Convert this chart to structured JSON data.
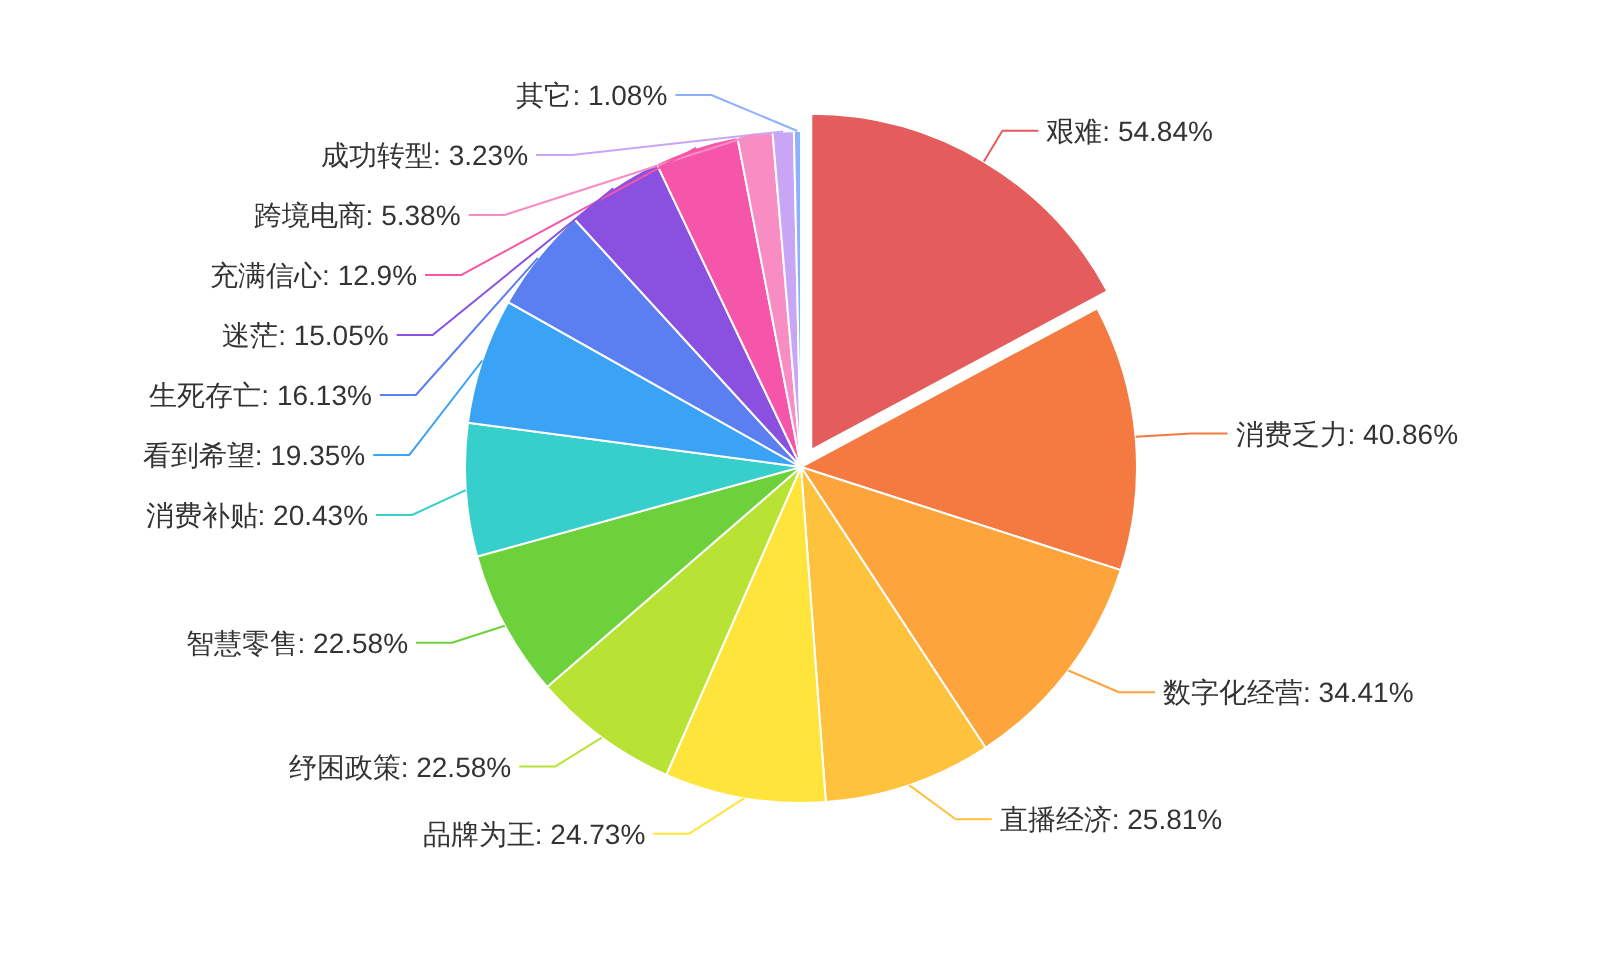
{
  "chart_data": {
    "type": "pie",
    "categories": [
      "艰难",
      "消费乏力",
      "数字化经营",
      "直播经济",
      "品牌为王",
      "纾困政策",
      "智慧零售",
      "消费补贴",
      "看到希望",
      "生死存亡",
      "迷茫",
      "充满信心",
      "跨境电商",
      "成功转型",
      "其它"
    ],
    "values": [
      54.84,
      40.86,
      34.41,
      25.81,
      24.73,
      22.58,
      22.58,
      20.43,
      19.35,
      16.13,
      15.05,
      12.9,
      5.38,
      3.23,
      1.08
    ],
    "value_labels": [
      "54.84%",
      "40.86%",
      "34.41%",
      "25.81%",
      "24.73%",
      "22.58%",
      "22.58%",
      "20.43%",
      "19.35%",
      "16.13%",
      "15.05%",
      "12.9%",
      "5.38%",
      "3.23%",
      "1.08%"
    ],
    "colors": [
      "#e45c5c",
      "#f47a42",
      "#fda43d",
      "#ffc23c",
      "#ffe53b",
      "#b8e334",
      "#6dd13c",
      "#37cfcb",
      "#3ba3f6",
      "#5b7ef0",
      "#8a50e0",
      "#f556a9",
      "#f88dc4",
      "#c9a5f5",
      "#8fb0ff"
    ]
  }
}
